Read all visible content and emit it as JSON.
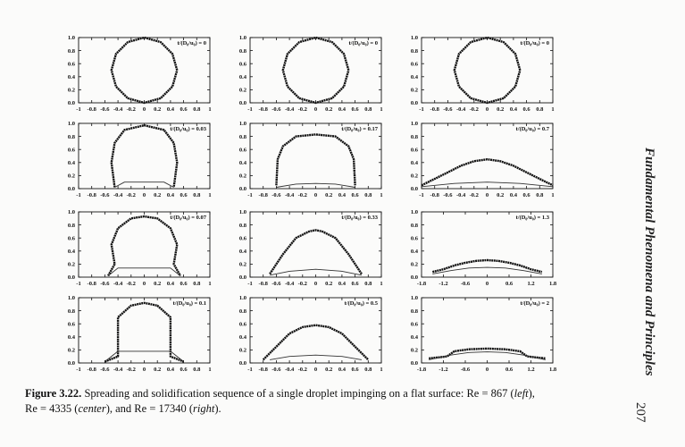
{
  "charts": [
    {
      "type": "line",
      "annotation": "t/(D₀/u₀) = 0",
      "xlim": [
        -1,
        1
      ],
      "xticks": [
        -1,
        -0.8,
        -0.6,
        -0.4,
        -0.2,
        0,
        0.2,
        0.4,
        0.6,
        0.8,
        1
      ],
      "ylim": [
        0,
        1
      ],
      "yticks": [
        {
          "value": 0,
          "label": "0.0"
        },
        0.2,
        0.4,
        0.6,
        0.8,
        {
          "value": 1,
          "label": "1.0"
        }
      ],
      "series": [
        {
          "color": "#111",
          "x": [
            0.5,
            0.43,
            0.25,
            0,
            -0.25,
            -0.43,
            -0.5,
            -0.43,
            -0.25,
            0,
            0.25,
            0.43,
            0.5
          ],
          "y": [
            0.5,
            0.75,
            0.93,
            1,
            0.93,
            0.75,
            0.5,
            0.25,
            0.07,
            0,
            0.07,
            0.25,
            0.5
          ]
        }
      ]
    },
    {
      "type": "line",
      "annotation": "t/(D₀/u₀) = 0.03",
      "xlim": [
        -1,
        1
      ],
      "xticks": [
        -1,
        -0.8,
        -0.6,
        -0.4,
        -0.2,
        0,
        0.2,
        0.4,
        0.6,
        0.8,
        1
      ],
      "ylim": [
        0,
        1
      ],
      "yticks": [
        {
          "value": 0,
          "label": "0.0"
        },
        0.2,
        0.4,
        0.6,
        0.8,
        {
          "value": 1,
          "label": "1.0"
        }
      ],
      "series": [
        {
          "color": "#111",
          "x": [
            -0.45,
            -0.5,
            -0.45,
            -0.3,
            0,
            0.3,
            0.45,
            0.5,
            0.45
          ],
          "y": [
            0.02,
            0.4,
            0.7,
            0.9,
            0.97,
            0.9,
            0.7,
            0.4,
            0.02
          ]
        },
        {
          "color": "#333",
          "x": [
            -0.45,
            -0.3,
            0.3,
            0.45
          ],
          "y": [
            0.02,
            0.1,
            0.1,
            0.02
          ]
        }
      ]
    },
    {
      "type": "line",
      "annotation": "t/(D₀/u₀) = 0.07",
      "xlim": [
        -1,
        1
      ],
      "xticks": [
        -1,
        -0.8,
        -0.6,
        -0.4,
        -0.2,
        0,
        0.2,
        0.4,
        0.6,
        0.8,
        1
      ],
      "ylim": [
        0,
        1
      ],
      "yticks": [
        {
          "value": 0,
          "label": "0.0"
        },
        0.2,
        0.4,
        0.6,
        0.8,
        {
          "value": 1,
          "label": "1.0"
        }
      ],
      "series": [
        {
          "color": "#111",
          "x": [
            -0.55,
            -0.45,
            -0.5,
            -0.4,
            -0.2,
            0,
            0.2,
            0.4,
            0.5,
            0.45,
            0.55
          ],
          "y": [
            0.02,
            0.2,
            0.5,
            0.75,
            0.9,
            0.93,
            0.9,
            0.75,
            0.5,
            0.2,
            0.02
          ]
        },
        {
          "color": "#333",
          "x": [
            -0.55,
            -0.4,
            0.4,
            0.55
          ],
          "y": [
            0.02,
            0.14,
            0.14,
            0.02
          ]
        }
      ]
    },
    {
      "type": "line",
      "annotation": "t/(D₀/u₀) = 0.1",
      "xlim": [
        -1,
        1
      ],
      "xticks": [
        -1,
        -0.8,
        -0.6,
        -0.4,
        -0.2,
        0,
        0.2,
        0.4,
        0.6,
        0.8,
        1
      ],
      "ylim": [
        0,
        1
      ],
      "yticks": [
        {
          "value": 0,
          "label": "0.0"
        },
        0.2,
        0.4,
        0.6,
        0.8,
        {
          "value": 1,
          "label": "1.0"
        }
      ],
      "series": [
        {
          "color": "#111",
          "x": [
            -0.6,
            -0.4,
            -0.4,
            -0.4,
            -0.2,
            0,
            0.2,
            0.4,
            0.4,
            0.4,
            0.6
          ],
          "y": [
            0.02,
            0.1,
            0.4,
            0.7,
            0.88,
            0.92,
            0.88,
            0.7,
            0.4,
            0.1,
            0.02
          ]
        },
        {
          "color": "#333",
          "x": [
            -0.6,
            -0.4,
            0.4,
            0.6
          ],
          "y": [
            0.02,
            0.18,
            0.18,
            0.02
          ]
        }
      ]
    },
    {
      "type": "line",
      "annotation": "t/(D₀/u₀) = 0",
      "xlim": [
        -1,
        1
      ],
      "xticks": [
        -1,
        -0.8,
        -0.6,
        -0.4,
        -0.2,
        0,
        0.2,
        0.4,
        0.6,
        0.8,
        1
      ],
      "ylim": [
        0,
        1
      ],
      "yticks": [
        {
          "value": 0,
          "label": "0.0"
        },
        0.2,
        0.4,
        0.6,
        0.8,
        {
          "value": 1,
          "label": "1.0"
        }
      ],
      "series": [
        {
          "color": "#111",
          "x": [
            0.5,
            0.43,
            0.25,
            0,
            -0.25,
            -0.43,
            -0.5,
            -0.43,
            -0.25,
            0,
            0.25,
            0.43,
            0.5
          ],
          "y": [
            0.5,
            0.75,
            0.93,
            1,
            0.93,
            0.75,
            0.5,
            0.25,
            0.07,
            0,
            0.07,
            0.25,
            0.5
          ]
        }
      ]
    },
    {
      "type": "line",
      "annotation": "t/(D₀/u₀) = 0.17",
      "xlim": [
        -1,
        1
      ],
      "xticks": [
        -1,
        -0.8,
        -0.6,
        -0.4,
        -0.2,
        0,
        0.2,
        0.4,
        0.6,
        0.8,
        1
      ],
      "ylim": [
        0,
        1
      ],
      "yticks": [
        {
          "value": 0,
          "label": "0.0"
        },
        0.2,
        0.4,
        0.6,
        0.8,
        {
          "value": 1,
          "label": "1.0"
        }
      ],
      "series": [
        {
          "color": "#111",
          "x": [
            -0.6,
            -0.58,
            -0.5,
            -0.3,
            0,
            0.3,
            0.5,
            0.58,
            0.6
          ],
          "y": [
            0.05,
            0.45,
            0.65,
            0.8,
            0.83,
            0.8,
            0.65,
            0.45,
            0.05
          ]
        },
        {
          "color": "#333",
          "x": [
            -0.6,
            -0.3,
            0,
            0.3,
            0.6
          ],
          "y": [
            0.02,
            0.07,
            0.08,
            0.07,
            0.02
          ]
        }
      ]
    },
    {
      "type": "line",
      "annotation": "t/(D₀/u₀) = 0.33",
      "xlim": [
        -1,
        1
      ],
      "xticks": [
        -1,
        -0.8,
        -0.6,
        -0.4,
        -0.2,
        0,
        0.2,
        0.4,
        0.6,
        0.8,
        1
      ],
      "ylim": [
        0,
        1
      ],
      "yticks": [
        {
          "value": 0,
          "label": "0.0"
        },
        0.2,
        0.4,
        0.6,
        0.8,
        {
          "value": 1,
          "label": "1.0"
        }
      ],
      "series": [
        {
          "color": "#111",
          "x": [
            -0.7,
            -0.5,
            -0.3,
            -0.1,
            0,
            0.1,
            0.3,
            0.5,
            0.7
          ],
          "y": [
            0.05,
            0.35,
            0.6,
            0.7,
            0.72,
            0.7,
            0.6,
            0.35,
            0.05
          ]
        },
        {
          "color": "#333",
          "x": [
            -0.7,
            -0.4,
            0,
            0.4,
            0.7
          ],
          "y": [
            0.03,
            0.09,
            0.12,
            0.09,
            0.03
          ]
        }
      ]
    },
    {
      "type": "line",
      "annotation": "t/(D₀/u₀) = 0.5",
      "xlim": [
        -1,
        1
      ],
      "xticks": [
        -1,
        -0.8,
        -0.6,
        -0.4,
        -0.2,
        0,
        0.2,
        0.4,
        0.6,
        0.8,
        1
      ],
      "ylim": [
        0,
        1
      ],
      "yticks": [
        {
          "value": 0,
          "label": "0.0"
        },
        0.2,
        0.4,
        0.6,
        0.8,
        {
          "value": 1,
          "label": "1.0"
        }
      ],
      "series": [
        {
          "color": "#111",
          "x": [
            -0.8,
            -0.6,
            -0.4,
            -0.2,
            0,
            0.2,
            0.4,
            0.6,
            0.8
          ],
          "y": [
            0.05,
            0.25,
            0.45,
            0.55,
            0.58,
            0.55,
            0.45,
            0.25,
            0.05
          ]
        },
        {
          "color": "#333",
          "x": [
            -0.7,
            -0.4,
            0,
            0.4,
            0.7
          ],
          "y": [
            0.05,
            0.1,
            0.12,
            0.1,
            0.05
          ]
        }
      ]
    },
    {
      "type": "line",
      "annotation": "t/(D₀/u₀) = 0",
      "xlim": [
        -1,
        1
      ],
      "xticks": [
        -1,
        -0.8,
        -0.6,
        -0.4,
        -0.2,
        0,
        0.2,
        0.4,
        0.6,
        0.8,
        1
      ],
      "ylim": [
        0,
        1
      ],
      "yticks": [
        {
          "value": 0,
          "label": "0.0"
        },
        0.2,
        0.4,
        0.6,
        0.8,
        {
          "value": 1,
          "label": "1.0"
        }
      ],
      "series": [
        {
          "color": "#111",
          "x": [
            0.5,
            0.43,
            0.25,
            0,
            -0.25,
            -0.43,
            -0.5,
            -0.43,
            -0.25,
            0,
            0.25,
            0.43,
            0.5
          ],
          "y": [
            0.5,
            0.75,
            0.93,
            1,
            0.93,
            0.75,
            0.5,
            0.25,
            0.07,
            0,
            0.07,
            0.25,
            0.5
          ]
        }
      ]
    },
    {
      "type": "line",
      "annotation": "t/(D₀/u₀) = 0.7",
      "xlim": [
        -1,
        1
      ],
      "xticks": [
        -1,
        -0.8,
        -0.6,
        -0.4,
        -0.2,
        0,
        0.2,
        0.4,
        0.6,
        0.8,
        1
      ],
      "ylim": [
        0,
        1
      ],
      "yticks": [
        {
          "value": 0,
          "label": "0.0"
        },
        0.2,
        0.4,
        0.6,
        0.8,
        {
          "value": 1,
          "label": "1.0"
        }
      ],
      "series": [
        {
          "color": "#111",
          "x": [
            -1,
            -0.8,
            -0.6,
            -0.4,
            -0.2,
            0,
            0.2,
            0.4,
            0.6,
            0.8,
            1
          ],
          "y": [
            0.05,
            0.15,
            0.25,
            0.35,
            0.42,
            0.45,
            0.42,
            0.35,
            0.25,
            0.15,
            0.05
          ]
        },
        {
          "color": "#333",
          "x": [
            -1,
            -0.5,
            0,
            0.5,
            1
          ],
          "y": [
            0.03,
            0.08,
            0.1,
            0.08,
            0.03
          ]
        }
      ]
    },
    {
      "type": "line",
      "annotation": "t/(D₀/u₀) = 1.3",
      "xlim": [
        -1.8,
        1.8
      ],
      "xticks": [
        -1.8,
        -1.2,
        -0.6,
        0,
        0.6,
        1.2,
        1.8
      ],
      "ylim": [
        0,
        1
      ],
      "yticks": [
        {
          "value": 0,
          "label": "0.0"
        },
        0.2,
        0.4,
        0.6,
        0.8,
        {
          "value": 1,
          "label": "1.0"
        }
      ],
      "series": [
        {
          "color": "#111",
          "x": [
            -1.5,
            -1.2,
            -0.9,
            -0.6,
            -0.3,
            0,
            0.3,
            0.6,
            0.9,
            1.2,
            1.5
          ],
          "y": [
            0.08,
            0.12,
            0.18,
            0.22,
            0.25,
            0.26,
            0.25,
            0.22,
            0.18,
            0.12,
            0.08
          ]
        },
        {
          "color": "#333",
          "x": [
            -1.5,
            -1,
            -0.5,
            0,
            0.5,
            1,
            1.5
          ],
          "y": [
            0.05,
            0.1,
            0.14,
            0.15,
            0.14,
            0.1,
            0.05
          ]
        }
      ]
    },
    {
      "type": "line",
      "annotation": "t/(D₀/u₀) = 2",
      "xlim": [
        -1.8,
        1.8
      ],
      "xticks": [
        -1.8,
        -1.2,
        -0.6,
        0,
        0.6,
        1.2,
        1.8
      ],
      "ylim": [
        0,
        1
      ],
      "yticks": [
        {
          "value": 0,
          "label": "0.0"
        },
        0.2,
        0.4,
        0.6,
        0.8,
        {
          "value": 1,
          "label": "1.0"
        }
      ],
      "series": [
        {
          "color": "#111",
          "x": [
            -1.6,
            -1.1,
            -0.9,
            -0.5,
            0,
            0.5,
            0.9,
            1.1,
            1.6
          ],
          "y": [
            0.07,
            0.1,
            0.18,
            0.21,
            0.22,
            0.21,
            0.18,
            0.1,
            0.07
          ]
        },
        {
          "color": "#333",
          "x": [
            -1.6,
            -1,
            -0.5,
            0,
            0.5,
            1,
            1.6
          ],
          "y": [
            0.05,
            0.12,
            0.16,
            0.17,
            0.16,
            0.12,
            0.05
          ]
        }
      ]
    }
  ],
  "caption": {
    "label": "Figure 3.22.",
    "line1": " Spreading and solidification sequence of a single droplet impinging on a flat surface: Re = 867 (",
    "left": "left",
    "line1_end": "),",
    "line2": "Re = 4335 (",
    "center": "center",
    "mid": "), and Re = 17340 (",
    "right": "right",
    "end": ")."
  },
  "running_head": "Fundamental Phenomena and Principles",
  "page_number": "207"
}
